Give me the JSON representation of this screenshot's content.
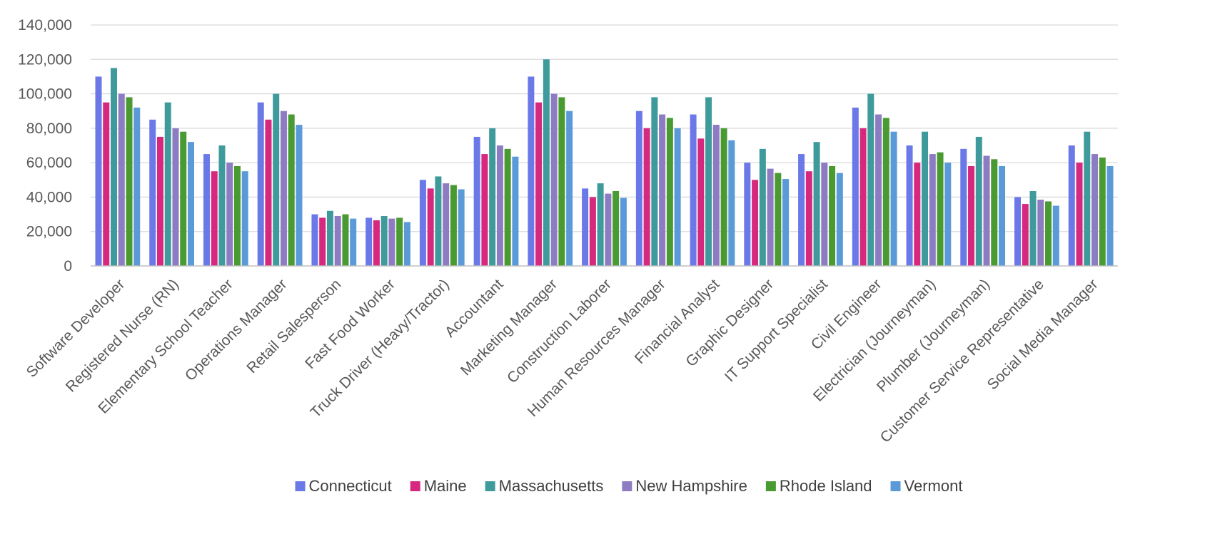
{
  "chart_data": {
    "type": "bar",
    "title": "",
    "xlabel": "",
    "ylabel": "",
    "ylim": [
      0,
      140000
    ],
    "yticks": [
      0,
      20000,
      40000,
      60000,
      80000,
      100000,
      120000,
      140000
    ],
    "ytick_labels": [
      "0",
      "20,000",
      "40,000",
      "60,000",
      "80,000",
      "100,000",
      "120,000",
      "140,000"
    ],
    "grid": true,
    "legend_position": "bottom",
    "categories": [
      "Software Developer",
      "Registered Nurse (RN)",
      "Elementary School Teacher",
      "Operations Manager",
      "Retail Salesperson",
      "Fast Food Worker",
      "Truck Driver (Heavy/Tractor)",
      "Accountant",
      "Marketing Manager",
      "Construction Laborer",
      "Human Resources Manager",
      "Financial Analyst",
      "Graphic Designer",
      "IT Support Specialist",
      "Civil Engineer",
      "Electrician (Journeyman)",
      "Plumber (Journeyman)",
      "Customer Service Representative",
      "Social Media Manager"
    ],
    "series": [
      {
        "name": "Connecticut",
        "color": "#6b78e8",
        "values": [
          110000,
          85000,
          65000,
          95000,
          30000,
          28000,
          50000,
          75000,
          110000,
          45000,
          90000,
          88000,
          60000,
          65000,
          92000,
          70000,
          68000,
          40000,
          70000
        ]
      },
      {
        "name": "Maine",
        "color": "#d6287e",
        "values": [
          95000,
          75000,
          55000,
          85000,
          28000,
          26500,
          45000,
          65000,
          95000,
          40000,
          80000,
          74000,
          50000,
          55000,
          80000,
          60000,
          58000,
          36000,
          60000
        ]
      },
      {
        "name": "Massachusetts",
        "color": "#3f9b9b",
        "values": [
          115000,
          95000,
          70000,
          100000,
          32000,
          29000,
          52000,
          80000,
          120000,
          48000,
          98000,
          98000,
          68000,
          72000,
          100000,
          78000,
          75000,
          43500,
          78000
        ]
      },
      {
        "name": "New Hampshire",
        "color": "#8e7cc3",
        "values": [
          100000,
          80000,
          60000,
          90000,
          29000,
          27500,
          48000,
          70000,
          100000,
          42000,
          88000,
          82000,
          56500,
          60000,
          88000,
          65000,
          64000,
          38500,
          65000
        ]
      },
      {
        "name": "Rhode Island",
        "color": "#4a9a32",
        "values": [
          98000,
          78000,
          58000,
          88000,
          30000,
          28000,
          47000,
          68000,
          98000,
          43500,
          86000,
          80000,
          54000,
          58000,
          86000,
          66000,
          62000,
          37500,
          63000
        ]
      },
      {
        "name": "Vermont",
        "color": "#5a9ad8",
        "values": [
          92000,
          72000,
          55000,
          82000,
          27500,
          25500,
          44500,
          63500,
          90000,
          39500,
          80000,
          73000,
          50500,
          54000,
          78000,
          60000,
          58000,
          35000,
          58000
        ]
      }
    ]
  }
}
